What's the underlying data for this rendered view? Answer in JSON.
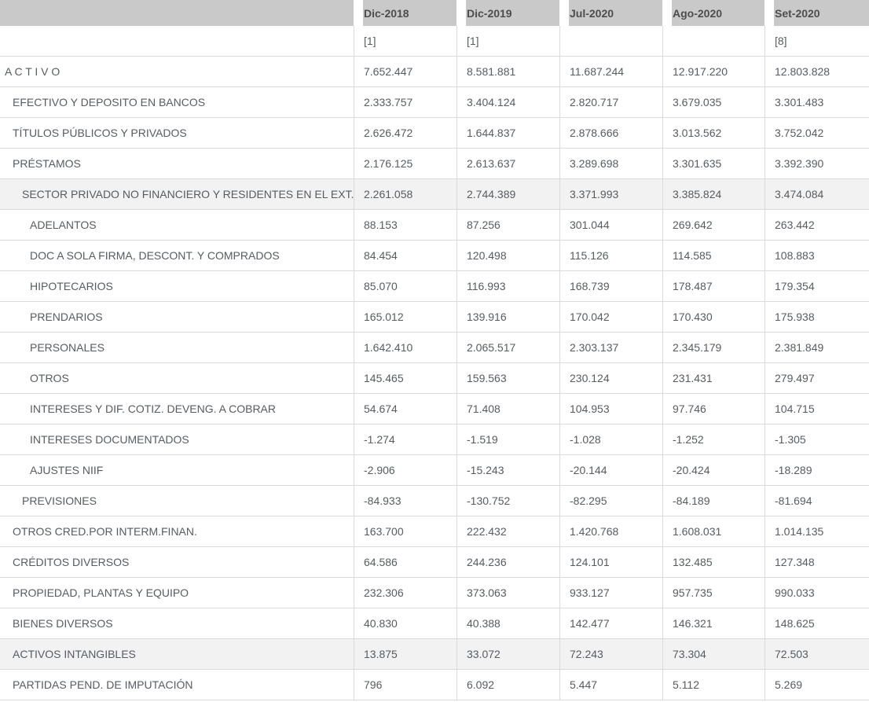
{
  "table": {
    "columns": [
      "Dic-2018",
      "Dic-2019",
      "Jul-2020",
      "Ago-2020",
      "Set-2020"
    ],
    "notes": [
      "[1]",
      "[1]",
      "",
      "",
      "[8]"
    ],
    "rows": [
      {
        "label": "A C T I V O",
        "indent": 0,
        "shaded": false,
        "values": [
          "7.652.447",
          "8.581.881",
          "11.687.244",
          "12.917.220",
          "12.803.828"
        ]
      },
      {
        "label": "EFECTIVO Y DEPOSITO EN BANCOS",
        "indent": 1,
        "shaded": false,
        "values": [
          "2.333.757",
          "3.404.124",
          "2.820.717",
          "3.679.035",
          "3.301.483"
        ]
      },
      {
        "label": "TÍTULOS PÚBLICOS Y PRIVADOS",
        "indent": 1,
        "shaded": false,
        "values": [
          "2.626.472",
          "1.644.837",
          "2.878.666",
          "3.013.562",
          "3.752.042"
        ]
      },
      {
        "label": "PRÉSTAMOS",
        "indent": 1,
        "shaded": false,
        "values": [
          "2.176.125",
          "2.613.637",
          "3.289.698",
          "3.301.635",
          "3.392.390"
        ]
      },
      {
        "label": "SECTOR PRIVADO NO FINANCIERO Y RESIDENTES EN EL EXT.",
        "indent": 2,
        "shaded": true,
        "values": [
          "2.261.058",
          "2.744.389",
          "3.371.993",
          "3.385.824",
          "3.474.084"
        ]
      },
      {
        "label": "ADELANTOS",
        "indent": 3,
        "shaded": false,
        "values": [
          "88.153",
          "87.256",
          "301.044",
          "269.642",
          "263.442"
        ]
      },
      {
        "label": "DOC A SOLA FIRMA, DESCONT. Y COMPRADOS",
        "indent": 3,
        "shaded": false,
        "values": [
          "84.454",
          "120.498",
          "115.126",
          "114.585",
          "108.883"
        ]
      },
      {
        "label": "HIPOTECARIOS",
        "indent": 3,
        "shaded": false,
        "values": [
          "85.070",
          "116.993",
          "168.739",
          "178.487",
          "179.354"
        ]
      },
      {
        "label": "PRENDARIOS",
        "indent": 3,
        "shaded": false,
        "values": [
          "165.012",
          "139.916",
          "170.042",
          "170.430",
          "175.938"
        ]
      },
      {
        "label": "PERSONALES",
        "indent": 3,
        "shaded": false,
        "values": [
          "1.642.410",
          "2.065.517",
          "2.303.137",
          "2.345.179",
          "2.381.849"
        ]
      },
      {
        "label": "OTROS",
        "indent": 3,
        "shaded": false,
        "values": [
          "145.465",
          "159.563",
          "230.124",
          "231.431",
          "279.497"
        ]
      },
      {
        "label": "INTERESES Y DIF. COTIZ. DEVENG. A COBRAR",
        "indent": 3,
        "shaded": false,
        "values": [
          "54.674",
          "71.408",
          "104.953",
          "97.746",
          "104.715"
        ]
      },
      {
        "label": "INTERESES DOCUMENTADOS",
        "indent": 3,
        "shaded": false,
        "values": [
          "-1.274",
          "-1.519",
          "-1.028",
          "-1.252",
          "-1.305"
        ]
      },
      {
        "label": "AJUSTES NIIF",
        "indent": 3,
        "shaded": false,
        "values": [
          "-2.906",
          "-15.243",
          "-20.144",
          "-20.424",
          "-18.289"
        ]
      },
      {
        "label": "PREVISIONES",
        "indent": 2,
        "shaded": false,
        "values": [
          "-84.933",
          "-130.752",
          "-82.295",
          "-84.189",
          "-81.694"
        ]
      },
      {
        "label": "OTROS CRED.POR INTERM.FINAN.",
        "indent": 1,
        "shaded": false,
        "values": [
          "163.700",
          "222.432",
          "1.420.768",
          "1.608.031",
          "1.014.135"
        ]
      },
      {
        "label": "CRÉDITOS DIVERSOS",
        "indent": 1,
        "shaded": false,
        "values": [
          "64.586",
          "244.236",
          "124.101",
          "132.485",
          "127.348"
        ]
      },
      {
        "label": "PROPIEDAD, PLANTAS Y EQUIPO",
        "indent": 1,
        "shaded": false,
        "values": [
          "232.306",
          "373.063",
          "933.127",
          "957.735",
          "990.033"
        ]
      },
      {
        "label": "BIENES DIVERSOS",
        "indent": 1,
        "shaded": false,
        "values": [
          "40.830",
          "40.388",
          "142.477",
          "146.321",
          "148.625"
        ]
      },
      {
        "label": "ACTIVOS INTANGIBLES",
        "indent": 1,
        "shaded": true,
        "values": [
          "13.875",
          "33.072",
          "72.243",
          "73.304",
          "72.503"
        ]
      },
      {
        "label": "PARTIDAS PEND. DE IMPUTACIÓN",
        "indent": 1,
        "shaded": false,
        "values": [
          "796",
          "6.092",
          "5.447",
          "5.112",
          "5.269"
        ]
      }
    ],
    "colors": {
      "header_bg": "#c9c9c9",
      "header_text": "#4d4d4d",
      "body_text": "#575c61",
      "border": "#dadada",
      "shaded_row_bg": "#f2f2f2"
    }
  }
}
